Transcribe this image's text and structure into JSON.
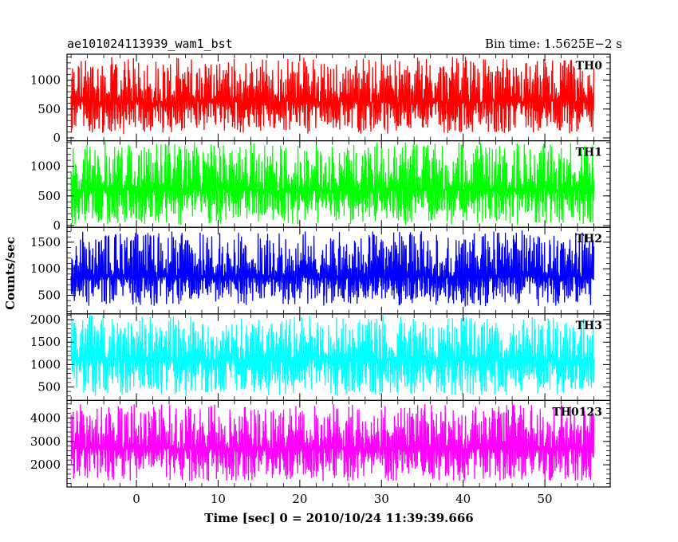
{
  "header": {
    "title": "ae101024113939_wam1_bst",
    "bin_time": "Bin time: 1.5625E−2 s"
  },
  "chart_data": {
    "type": "line",
    "title": "ae101024113939_wam1_bst",
    "xlabel": "Time [sec] 0 = 2010/10/24 11:39:39.666",
    "ylabel": "Counts/sec",
    "xlim": [
      -8.5,
      58
    ],
    "x_ticks": [
      0,
      10,
      20,
      30,
      40,
      50
    ],
    "data_x_range": [
      -8,
      56
    ],
    "grid": false,
    "panels": [
      {
        "name": "TH0",
        "color": "#ff0000",
        "ylim": [
          -50,
          1450
        ],
        "y_ticks": [
          0,
          500,
          1000
        ],
        "mean": 620,
        "low": 80,
        "high": 1400
      },
      {
        "name": "TH1",
        "color": "#00ff00",
        "ylim": [
          -30,
          1430
        ],
        "y_ticks": [
          0,
          500,
          1000
        ],
        "mean": 600,
        "low": 20,
        "high": 1400
      },
      {
        "name": "TH2",
        "color": "#0000ff",
        "ylim": [
          150,
          1780
        ],
        "y_ticks": [
          500,
          1000,
          1500
        ],
        "mean": 850,
        "low": 300,
        "high": 1700
      },
      {
        "name": "TH3",
        "color": "#00ffff",
        "ylim": [
          200,
          2130
        ],
        "y_ticks": [
          500,
          1000,
          1500,
          2000
        ],
        "mean": 1100,
        "low": 300,
        "high": 2100
      },
      {
        "name": "TH0123",
        "color": "#ff00ff",
        "ylim": [
          1050,
          4750
        ],
        "y_ticks": [
          2000,
          3000,
          4000
        ],
        "mean": 2700,
        "low": 1300,
        "high": 4600
      }
    ]
  }
}
